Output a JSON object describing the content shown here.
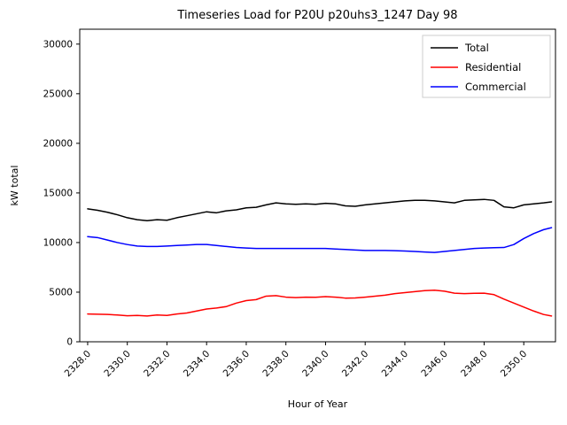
{
  "chart_data": {
    "type": "line",
    "title": "Timeseries Load for P20U p20uhs3_1247  Day 98",
    "xlabel": "Hour of Year",
    "ylabel": "kW total",
    "xlim": [
      2327.6,
      2351.6
    ],
    "ylim": [
      0,
      31500
    ],
    "grid": false,
    "legend_position": "upper right",
    "xticks": [
      2328,
      2330,
      2332,
      2334,
      2336,
      2338,
      2340,
      2342,
      2344,
      2346,
      2348,
      2350
    ],
    "xtick_labels": [
      "2328.0",
      "2330.0",
      "2332.0",
      "2334.0",
      "2336.0",
      "2338.0",
      "2340.0",
      "2342.0",
      "2344.0",
      "2346.0",
      "2348.0",
      "2350.0"
    ],
    "yticks": [
      0,
      5000,
      10000,
      15000,
      20000,
      25000,
      30000
    ],
    "ytick_labels": [
      "0",
      "5000",
      "10000",
      "15000",
      "20000",
      "25000",
      "30000"
    ],
    "x": [
      2328,
      2328.5,
      2329,
      2329.5,
      2330,
      2330.5,
      2331,
      2331.5,
      2332,
      2332.5,
      2333,
      2333.5,
      2334,
      2334.5,
      2335,
      2335.5,
      2336,
      2336.5,
      2337,
      2337.5,
      2338,
      2338.5,
      2339,
      2339.5,
      2340,
      2340.5,
      2341,
      2341.5,
      2342,
      2342.5,
      2343,
      2343.5,
      2344,
      2344.5,
      2345,
      2345.5,
      2346,
      2346.5,
      2347,
      2347.5,
      2348,
      2348.5,
      2349,
      2349.5,
      2350,
      2350.5,
      2351,
      2351.4
    ],
    "series": [
      {
        "name": "Total",
        "color": "#000000",
        "values": [
          13400,
          13250,
          13050,
          12800,
          12500,
          12300,
          12200,
          12300,
          12250,
          12500,
          12700,
          12900,
          13100,
          13000,
          13200,
          13300,
          13500,
          13550,
          13800,
          14000,
          13900,
          13850,
          13900,
          13850,
          13950,
          13900,
          13700,
          13650,
          13800,
          13900,
          14000,
          14100,
          14200,
          14250,
          14250,
          14200,
          14100,
          14000,
          14250,
          14300,
          14350,
          14250,
          13600,
          13500,
          13800,
          13900,
          14000,
          14100
        ]
      },
      {
        "name": "Residential",
        "color": "#ff0000",
        "values": [
          2800,
          2780,
          2750,
          2700,
          2620,
          2650,
          2600,
          2700,
          2650,
          2800,
          2900,
          3100,
          3300,
          3400,
          3550,
          3900,
          4150,
          4250,
          4600,
          4650,
          4500,
          4450,
          4500,
          4480,
          4550,
          4500,
          4400,
          4420,
          4500,
          4600,
          4700,
          4850,
          4950,
          5050,
          5150,
          5200,
          5100,
          4900,
          4850,
          4880,
          4900,
          4750,
          4300,
          3900,
          3500,
          3100,
          2750,
          2600
        ]
      },
      {
        "name": "Commercial",
        "color": "#0000ff",
        "values": [
          10600,
          10500,
          10250,
          10000,
          9800,
          9650,
          9600,
          9600,
          9650,
          9700,
          9750,
          9800,
          9800,
          9700,
          9600,
          9500,
          9450,
          9400,
          9400,
          9400,
          9400,
          9400,
          9400,
          9400,
          9400,
          9350,
          9300,
          9250,
          9200,
          9200,
          9200,
          9180,
          9150,
          9100,
          9050,
          9000,
          9100,
          9200,
          9300,
          9400,
          9450,
          9480,
          9500,
          9800,
          10400,
          10900,
          11300,
          11500
        ]
      }
    ],
    "legend": [
      {
        "label": "Total",
        "color": "#000000"
      },
      {
        "label": "Residential",
        "color": "#ff0000"
      },
      {
        "label": "Commercial",
        "color": "#0000ff"
      }
    ]
  }
}
